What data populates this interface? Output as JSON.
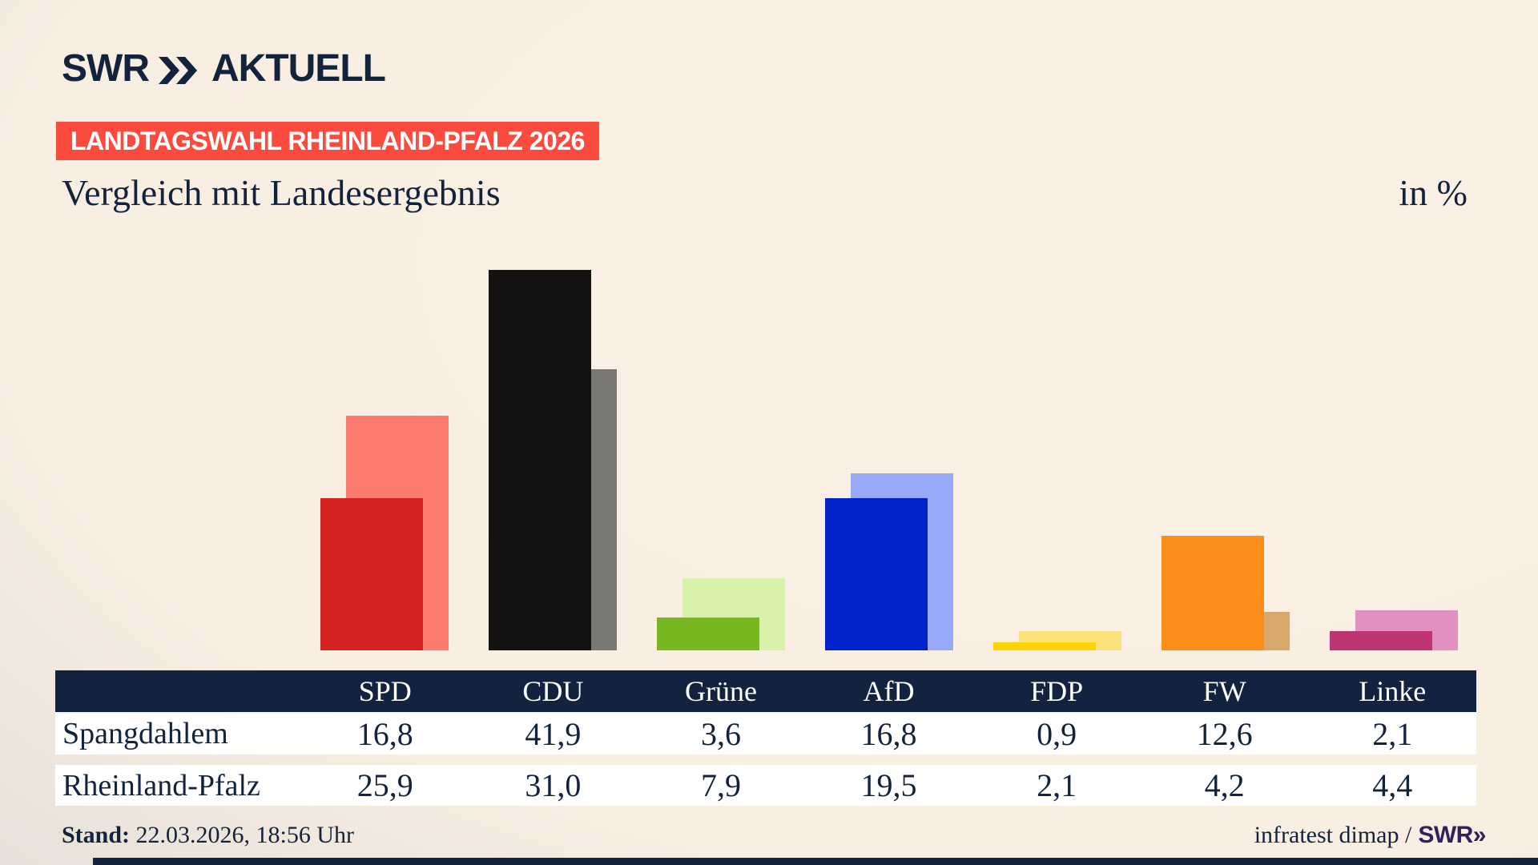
{
  "header": {
    "logo": {
      "brand": "SWR",
      "chevron_icon": "double-chevron-right",
      "suffix": "AKTUELL"
    },
    "badge": "LANDTAGSWAHL RHEINLAND-PFALZ 2026",
    "title": "Vergleich mit Landesergebnis",
    "unit_label": "in %"
  },
  "chart_data": {
    "type": "bar",
    "categories": [
      "SPD",
      "CDU",
      "Grüne",
      "AfD",
      "FDP",
      "FW",
      "Linke"
    ],
    "series": [
      {
        "name": "Spangdahlem",
        "values": [
          16.8,
          41.9,
          3.6,
          16.8,
          0.9,
          12.6,
          2.1
        ],
        "colors": [
          "#d42322",
          "#151311",
          "#77b61f",
          "#0422cc",
          "#ffd200",
          "#fb8d1b",
          "#bd3471"
        ]
      },
      {
        "name": "Rheinland-Pfalz",
        "values": [
          25.9,
          31.0,
          7.9,
          19.5,
          2.1,
          4.2,
          4.4
        ],
        "colors": [
          "#fc7b6f",
          "#7a7873",
          "#d8f2aa",
          "#98a9f8",
          "#fbe177",
          "#daa76a",
          "#e190c1"
        ]
      }
    ],
    "unit": "%",
    "ylim": [
      0,
      47.8
    ],
    "grid": false,
    "legend_position": "table-row-labels",
    "title": "Vergleich mit Landesergebnis",
    "xlabel": "",
    "ylabel": "in %"
  },
  "table": {
    "columns": [
      "SPD",
      "CDU",
      "Grüne",
      "AfD",
      "FDP",
      "FW",
      "Linke"
    ],
    "rows": [
      {
        "label": "Spangdahlem",
        "values": [
          "16,8",
          "41,9",
          "3,6",
          "16,8",
          "0,9",
          "12,6",
          "2,1"
        ]
      },
      {
        "label": "Rheinland-Pfalz",
        "values": [
          "25,9",
          "31,0",
          "7,9",
          "19,5",
          "2,1",
          "4,2",
          "4,4"
        ]
      }
    ]
  },
  "footer": {
    "stand_label": "Stand:",
    "stand_value": "22.03.2026, 18:56 Uhr",
    "credit_text": "infratest dimap /",
    "credit_brand": "SWR»"
  },
  "colors": {
    "navy": "#13233f",
    "text": "#14233c",
    "badge_red": "#f94c3e",
    "background_cream": "#faf0e4",
    "background_gray": "#d6d3cf",
    "credit_brand_purple": "#32205a"
  }
}
